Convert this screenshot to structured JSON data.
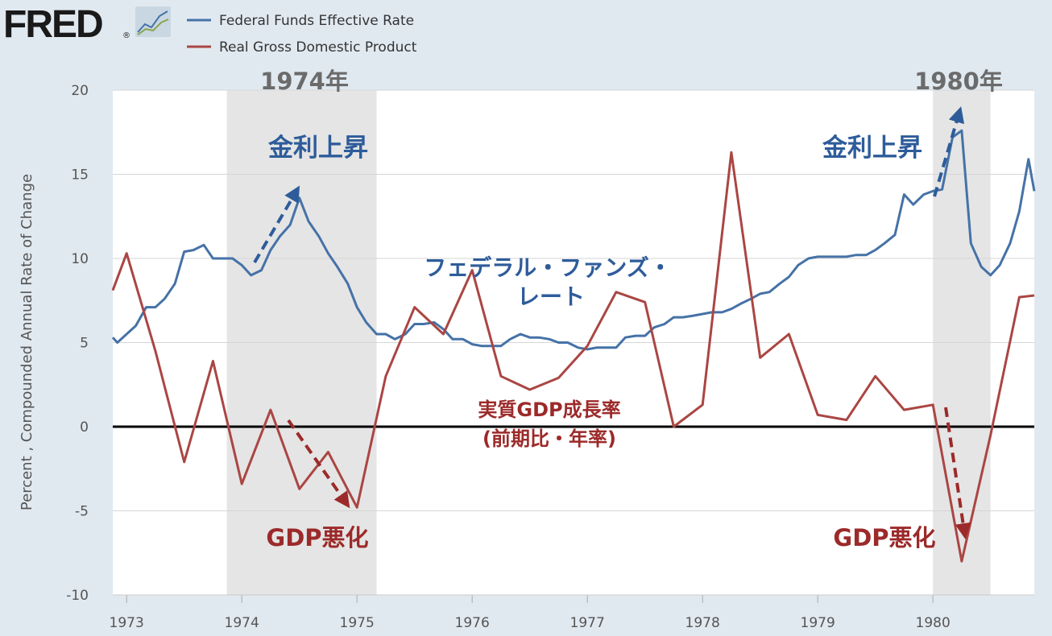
{
  "branding": {
    "logo_text": "FRED",
    "logo_mark": "®"
  },
  "chart_data": {
    "type": "line",
    "xlabel": "",
    "ylabel": "Percent , Compounded Annual Rate of Change",
    "xlim": [
      1972.88,
      1980.88
    ],
    "ylim": [
      -10,
      20
    ],
    "x_ticks": [
      1973,
      1974,
      1975,
      1976,
      1977,
      1978,
      1979,
      1980
    ],
    "x_tick_labels": [
      "1973",
      "1974",
      "1975",
      "1976",
      "1977",
      "1978",
      "1979",
      "1980"
    ],
    "y_ticks": [
      -10,
      -5,
      0,
      5,
      10,
      15,
      20
    ],
    "y_tick_labels": [
      "-10",
      "-5",
      "0",
      "5",
      "10",
      "15",
      "20"
    ],
    "grid": true,
    "legend_position": "top-left",
    "recessions": [
      [
        1973.87,
        1975.17
      ],
      [
        1980.0,
        1980.5
      ]
    ],
    "series": [
      {
        "name": "Federal Funds Effective Rate",
        "color": "#4572a7",
        "x": [
          1972.88,
          1972.92,
          1973.0,
          1973.08,
          1973.17,
          1973.25,
          1973.33,
          1973.42,
          1973.5,
          1973.58,
          1973.67,
          1973.75,
          1973.83,
          1973.92,
          1974.0,
          1974.08,
          1974.17,
          1974.25,
          1974.33,
          1974.42,
          1974.5,
          1974.58,
          1974.67,
          1974.75,
          1974.83,
          1974.92,
          1975.0,
          1975.08,
          1975.17,
          1975.25,
          1975.33,
          1975.42,
          1975.5,
          1975.58,
          1975.67,
          1975.75,
          1975.83,
          1975.92,
          1976.0,
          1976.08,
          1976.17,
          1976.25,
          1976.33,
          1976.42,
          1976.5,
          1976.58,
          1976.67,
          1976.75,
          1976.83,
          1976.92,
          1977.0,
          1977.08,
          1977.17,
          1977.25,
          1977.33,
          1977.42,
          1977.5,
          1977.58,
          1977.67,
          1977.75,
          1977.83,
          1977.92,
          1978.0,
          1978.08,
          1978.17,
          1978.25,
          1978.33,
          1978.42,
          1978.5,
          1978.58,
          1978.67,
          1978.75,
          1978.83,
          1978.92,
          1979.0,
          1979.08,
          1979.17,
          1979.25,
          1979.33,
          1979.42,
          1979.5,
          1979.58,
          1979.67,
          1979.75,
          1979.83,
          1979.92,
          1980.0,
          1980.08,
          1980.17,
          1980.25,
          1980.33,
          1980.42,
          1980.5,
          1980.58,
          1980.67,
          1980.75,
          1980.83,
          1980.88
        ],
        "y": [
          5.3,
          5.0,
          5.5,
          6.0,
          7.1,
          7.1,
          7.6,
          8.5,
          10.4,
          10.5,
          10.8,
          10.0,
          10.0,
          10.0,
          9.6,
          9.0,
          9.3,
          10.5,
          11.3,
          12.0,
          13.6,
          12.2,
          11.3,
          10.3,
          9.5,
          8.5,
          7.1,
          6.2,
          5.5,
          5.5,
          5.2,
          5.5,
          6.1,
          6.1,
          6.2,
          5.8,
          5.2,
          5.2,
          4.9,
          4.8,
          4.8,
          4.8,
          5.2,
          5.5,
          5.3,
          5.3,
          5.2,
          5.0,
          5.0,
          4.7,
          4.6,
          4.7,
          4.7,
          4.7,
          5.3,
          5.4,
          5.4,
          5.9,
          6.1,
          6.5,
          6.5,
          6.6,
          6.7,
          6.8,
          6.8,
          7.0,
          7.3,
          7.6,
          7.9,
          8.0,
          8.5,
          8.9,
          9.6,
          10.0,
          10.1,
          10.1,
          10.1,
          10.1,
          10.2,
          10.2,
          10.5,
          10.9,
          11.4,
          13.8,
          13.2,
          13.8,
          14.0,
          14.1,
          17.2,
          17.6,
          10.9,
          9.5,
          9.0,
          9.6,
          10.9,
          12.8,
          15.9,
          14.0
        ]
      },
      {
        "name": "Real Gross Domestic Product",
        "color": "#aa4643",
        "x": [
          1972.88,
          1973.0,
          1973.25,
          1973.5,
          1973.75,
          1974.0,
          1974.25,
          1974.5,
          1974.75,
          1975.0,
          1975.25,
          1975.5,
          1975.75,
          1976.0,
          1976.25,
          1976.5,
          1976.75,
          1977.0,
          1977.25,
          1977.5,
          1977.75,
          1978.0,
          1978.25,
          1978.5,
          1978.75,
          1979.0,
          1979.25,
          1979.5,
          1979.75,
          1980.0,
          1980.25,
          1980.5,
          1980.75,
          1980.88
        ],
        "y": [
          8.1,
          10.3,
          4.5,
          -2.1,
          3.9,
          -3.4,
          1.0,
          -3.7,
          -1.5,
          -4.8,
          3.0,
          7.1,
          5.5,
          9.3,
          3.0,
          2.2,
          2.9,
          4.8,
          8.0,
          7.4,
          0.0,
          1.3,
          16.3,
          4.1,
          5.5,
          0.7,
          0.4,
          3.0,
          1.0,
          1.3,
          -8.0,
          -0.5,
          7.7,
          7.8
        ]
      }
    ]
  },
  "annotations": {
    "year_1974": "1974年",
    "year_1980": "1980年",
    "rate_rise_1": "金利上昇",
    "rate_rise_2": "金利上昇",
    "ffr_label_line1": "フェデラル・ファンズ・",
    "ffr_label_line2": "レート",
    "gdp_label_line1": "実質GDP成長率",
    "gdp_label_line2": "(前期比・年率)",
    "gdp_worse_1": "GDP悪化",
    "gdp_worse_2": "GDP悪化"
  },
  "colors": {
    "background": "#e1e9f0",
    "plot_background": "#ffffff",
    "recession_shade": "#e5e5e5",
    "annotation_blue": "#2e5c9a",
    "annotation_red": "#9c2a2a",
    "annotation_gray": "#6b6b6b"
  }
}
